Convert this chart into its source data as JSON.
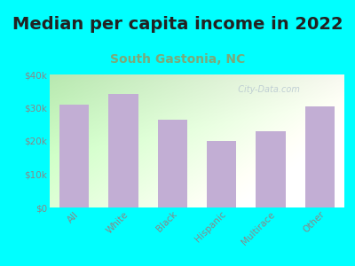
{
  "title": "Median per capita income in 2022",
  "subtitle": "South Gastonia, NC",
  "categories": [
    "All",
    "White",
    "Black",
    "Hispanic",
    "Multirace",
    "Other"
  ],
  "values": [
    31000,
    34000,
    26500,
    20000,
    23000,
    30500
  ],
  "bar_color": "#c2aed4",
  "background_color": "#00ffff",
  "title_fontsize": 14,
  "title_color": "#222222",
  "subtitle_fontsize": 10,
  "subtitle_color": "#7aaa7a",
  "tick_color": "#888888",
  "tick_fontsize": 7.5,
  "ylim": [
    0,
    40000
  ],
  "yticks": [
    0,
    10000,
    20000,
    30000,
    40000
  ],
  "ytick_labels": [
    "$0",
    "$10k",
    "$20k",
    "$30k",
    "$40k"
  ],
  "watermark": "  City-Data.com",
  "watermark_color": "#b8c8d0",
  "grad_left": "#b8e8b0",
  "grad_right": "#f8f8f0"
}
